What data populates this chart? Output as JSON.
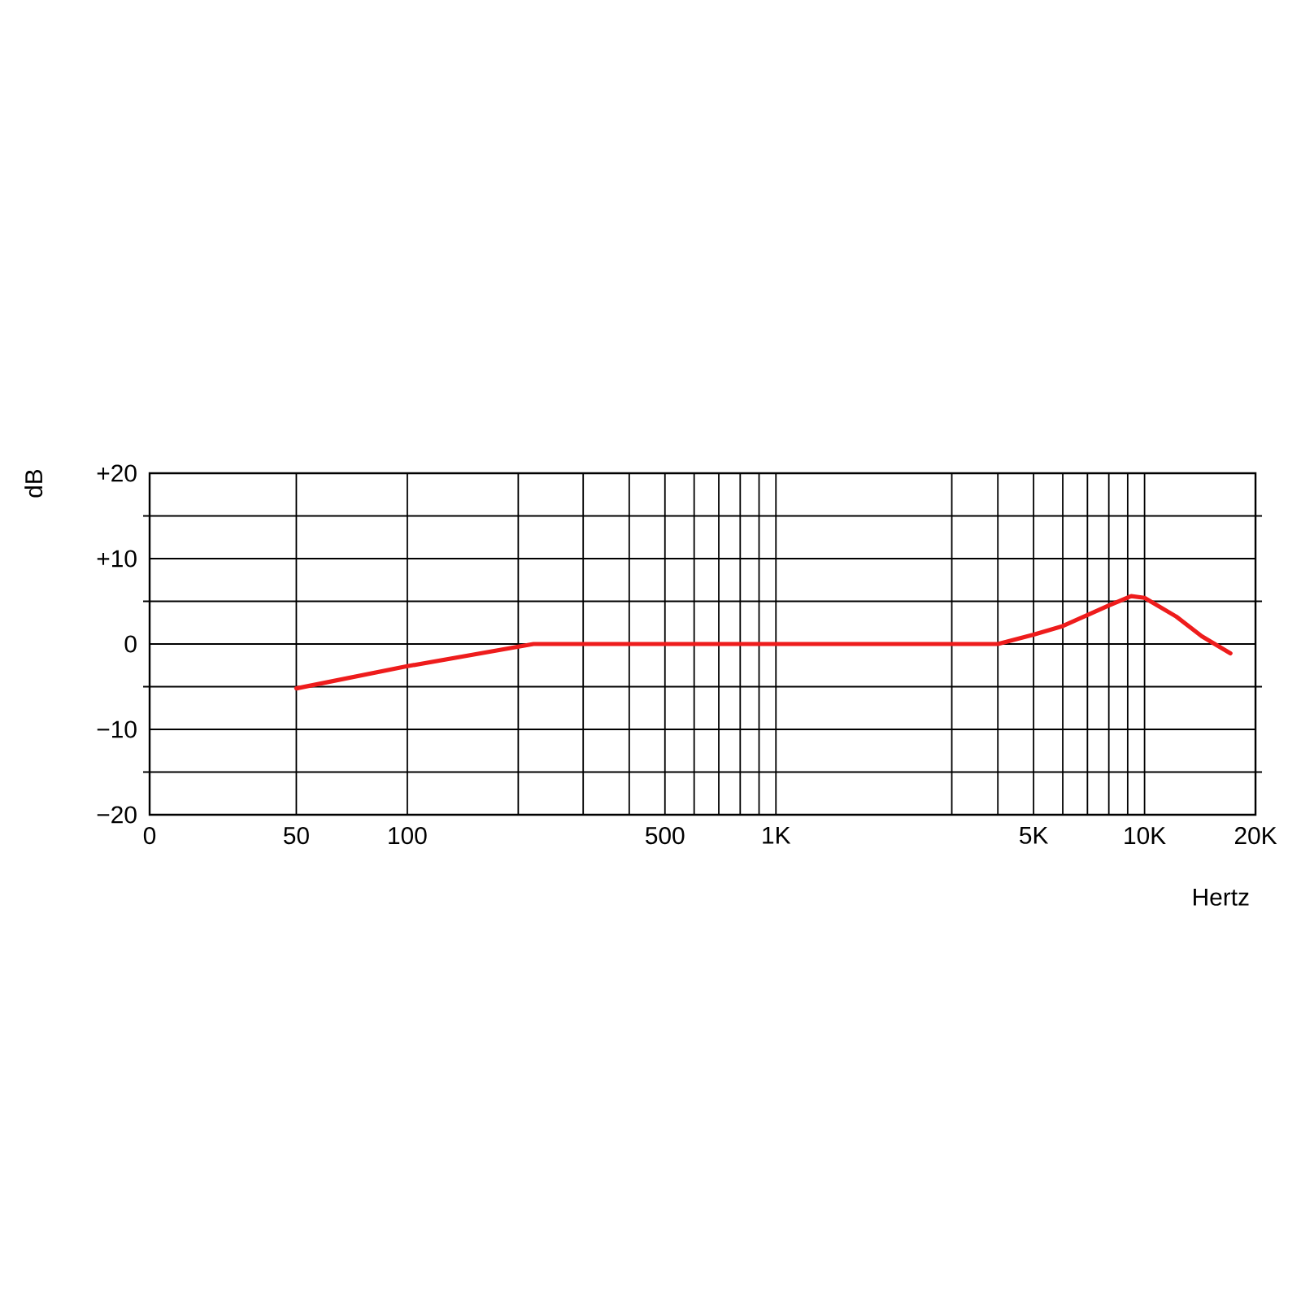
{
  "chart_data": {
    "type": "line",
    "xlabel": "Hertz",
    "ylabel": "dB",
    "log": "x",
    "grid": true,
    "line_style": "solid",
    "xlim": [
      0,
      20000
    ],
    "ylim": [
      -20,
      20
    ],
    "xticks": [
      0,
      50,
      100,
      {
        "value": 200,
        "label": null
      },
      {
        "value": 300,
        "label": null
      },
      {
        "value": 400,
        "label": null
      },
      500,
      {
        "value": 600,
        "label": null
      },
      {
        "value": 700,
        "label": null
      },
      {
        "value": 800,
        "label": null
      },
      {
        "value": 900,
        "label": null
      },
      {
        "value": 1000,
        "label": "1K"
      },
      {
        "value": 3000,
        "label": null
      },
      {
        "value": 4000,
        "label": null
      },
      {
        "value": 5000,
        "label": "5K"
      },
      {
        "value": 6000,
        "label": null
      },
      {
        "value": 7000,
        "label": null
      },
      {
        "value": 8000,
        "label": null
      },
      {
        "value": 9000,
        "label": null
      },
      {
        "value": 10000,
        "label": "10K"
      },
      {
        "value": 20000,
        "label": "20K"
      }
    ],
    "yticks": [
      {
        "value": -20,
        "label": "−20"
      },
      {
        "value": -15,
        "label": null
      },
      {
        "value": -10,
        "label": "−10"
      },
      {
        "value": -5,
        "label": null
      },
      0,
      {
        "value": 5,
        "label": null
      },
      {
        "value": 10,
        "label": "+10"
      },
      {
        "value": 15,
        "label": null
      },
      {
        "value": 20,
        "label": "+20"
      }
    ],
    "series": [
      {
        "color": "#ee1c1c",
        "x": [
          50,
          100,
          220,
          1000,
          4000,
          5000,
          6000,
          7000,
          8000,
          9200,
          10000,
          12200,
          14300,
          17100
        ],
        "values": [
          -5.2,
          -2.6,
          0,
          0,
          0,
          1.1,
          2.1,
          3.4,
          4.5,
          5.6,
          5.4,
          3.2,
          0.9,
          -1.1
        ]
      }
    ]
  }
}
